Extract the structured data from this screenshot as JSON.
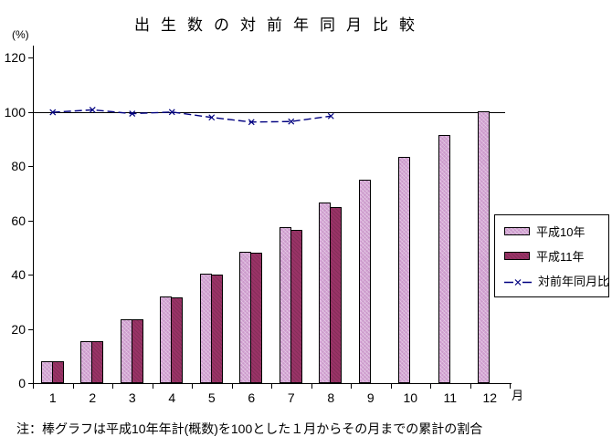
{
  "title_display": "出生数の対前年同月比較",
  "y_axis_unit": "(%)",
  "x_axis_unit": "月",
  "footnote": "注：棒グラフは平成10年年計(概数)を100とした１月からその月までの累計の割合",
  "legend": {
    "items": [
      {
        "label": "平成10年",
        "swatch": "bar-light"
      },
      {
        "label": "平成11年",
        "swatch": "bar-dark"
      },
      {
        "label": "対前年同月比",
        "swatch": "line"
      }
    ]
  },
  "colors": {
    "bar_heisei10": "#cc99cc",
    "bar_heisei11": "#993366",
    "line_ratio": "#000080",
    "axis": "#000000",
    "background": "#ffffff"
  },
  "chart_data": {
    "type": "bar",
    "title": "出生数の対前年同月比較",
    "categories": [
      "1",
      "2",
      "3",
      "4",
      "5",
      "6",
      "7",
      "8",
      "9",
      "10",
      "11",
      "12"
    ],
    "series": [
      {
        "name": "平成10年",
        "kind": "bar",
        "color": "#cc99cc",
        "values": [
          8,
          15.5,
          23.5,
          32,
          40.5,
          48.5,
          57.5,
          66.5,
          75,
          83.5,
          91.5,
          100
        ]
      },
      {
        "name": "平成11年",
        "kind": "bar",
        "color": "#993366",
        "values": [
          8,
          15.5,
          23.5,
          31.5,
          40,
          48,
          56.5,
          65,
          null,
          null,
          null,
          null
        ]
      },
      {
        "name": "対前年同月比",
        "kind": "line",
        "color": "#000080",
        "marker": "x",
        "values": [
          99.8,
          100.7,
          99.3,
          99.9,
          97.9,
          96.2,
          96.4,
          98.4,
          null,
          null,
          null,
          null
        ]
      }
    ],
    "xlabel": "月",
    "ylabel": "(%)",
    "ylim": [
      0,
      120
    ],
    "yticks": [
      0,
      20,
      40,
      60,
      80,
      100,
      120
    ],
    "reference_line": 100,
    "grid": false,
    "legend_position": "middle-right",
    "note": "注：棒グラフは平成10年年計(概数)を100とした１月からその月までの累計の割合"
  }
}
